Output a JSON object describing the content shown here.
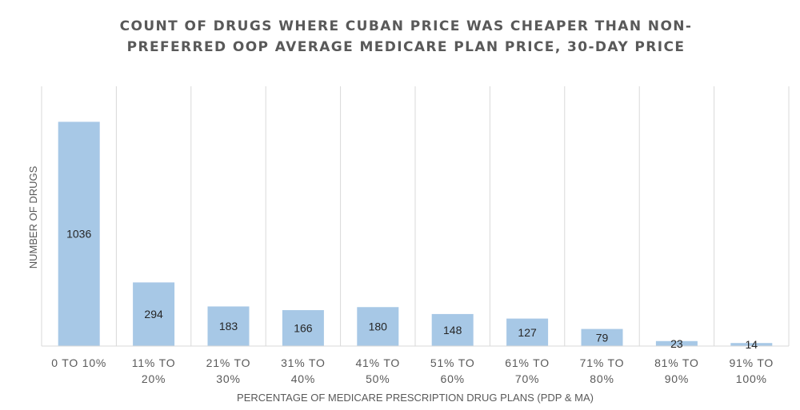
{
  "chart_data": {
    "type": "bar",
    "title": "COUNT OF DRUGS WHERE CUBAN PRICE WAS CHEAPER THAN NON-PREFERRED OOP AVERAGE MEDICARE PLAN PRICE, 30-DAY PRICE",
    "xlabel": "PERCENTAGE OF MEDICARE PRESCRIPTION DRUG PLANS (PDP & MA)",
    "ylabel": "NUMBER OF DRUGS",
    "categories": [
      [
        "0 TO 10%"
      ],
      [
        "11% TO",
        "20%"
      ],
      [
        "21% TO",
        "30%"
      ],
      [
        "31% TO",
        "40%"
      ],
      [
        "41% TO",
        "50%"
      ],
      [
        "51% TO",
        "60%"
      ],
      [
        "61% TO",
        "70%"
      ],
      [
        "71% TO",
        "80%"
      ],
      [
        "81% TO",
        "90%"
      ],
      [
        "91% TO",
        "100%"
      ]
    ],
    "values": [
      1036,
      294,
      183,
      166,
      180,
      148,
      127,
      79,
      23,
      14
    ],
    "ylim": [
      0,
      1200
    ],
    "grid": "vertical",
    "bar_color": "#a7c8e6",
    "grid_color": "#d9d9d9",
    "text_color": "#595959"
  }
}
